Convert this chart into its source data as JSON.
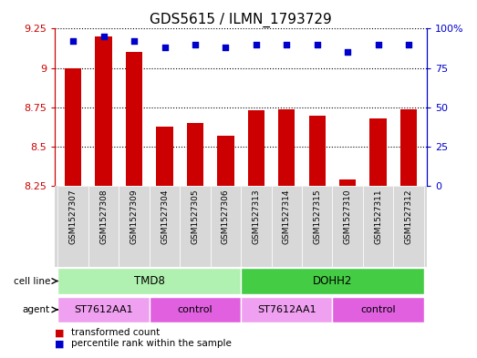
{
  "title": "GDS5615 / ILMN_1793729",
  "samples": [
    "GSM1527307",
    "GSM1527308",
    "GSM1527309",
    "GSM1527304",
    "GSM1527305",
    "GSM1527306",
    "GSM1527313",
    "GSM1527314",
    "GSM1527315",
    "GSM1527310",
    "GSM1527311",
    "GSM1527312"
  ],
  "bar_values": [
    9.0,
    9.2,
    9.1,
    8.63,
    8.65,
    8.57,
    8.73,
    8.74,
    8.7,
    8.29,
    8.68,
    8.74
  ],
  "dot_values": [
    92,
    95,
    92,
    88,
    90,
    88,
    90,
    90,
    90,
    85,
    90,
    90
  ],
  "bar_color": "#cc0000",
  "dot_color": "#0000cc",
  "ylim_left": [
    8.25,
    9.25
  ],
  "ylim_right": [
    0,
    100
  ],
  "yticks_left": [
    8.25,
    8.5,
    8.75,
    9.0,
    9.25
  ],
  "yticks_right": [
    0,
    25,
    50,
    75,
    100
  ],
  "ytick_labels_left": [
    "8.25",
    "8.5",
    "8.75",
    "9",
    "9.25"
  ],
  "ytick_labels_right": [
    "0",
    "25",
    "50",
    "75",
    "100%"
  ],
  "cell_line_groups": [
    {
      "label": "TMD8",
      "start": 0,
      "end": 5,
      "color": "#b0f0b0"
    },
    {
      "label": "DOHH2",
      "start": 6,
      "end": 11,
      "color": "#44cc44"
    }
  ],
  "agent_groups": [
    {
      "label": "ST7612AA1",
      "start": 0,
      "end": 2,
      "color": "#f0a0f0"
    },
    {
      "label": "control",
      "start": 3,
      "end": 5,
      "color": "#e060e0"
    },
    {
      "label": "ST7612AA1",
      "start": 6,
      "end": 8,
      "color": "#f0a0f0"
    },
    {
      "label": "control",
      "start": 9,
      "end": 11,
      "color": "#e060e0"
    }
  ],
  "bar_width": 0.55,
  "title_fontsize": 11,
  "tick_fontsize": 8,
  "sample_fontsize": 6.5
}
